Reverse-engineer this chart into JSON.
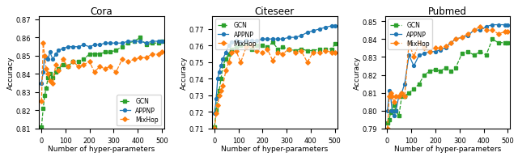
{
  "cora": {
    "title": "Cora",
    "xlabel": "Number of hyper-parameters",
    "ylabel": "Accuracy",
    "xlim": [
      -10,
      510
    ],
    "ylim": [
      0.81,
      0.062
    ],
    "gcn_x": [
      1,
      8,
      14,
      20,
      28,
      36,
      48,
      60,
      72,
      90,
      110,
      132,
      154,
      176,
      200,
      220,
      242,
      264,
      284,
      310,
      335,
      360,
      386,
      410,
      436,
      460,
      488,
      500
    ],
    "gcn_y": [
      0.811,
      0.821,
      0.828,
      0.832,
      0.838,
      0.84,
      0.838,
      0.841,
      0.843,
      0.845,
      0.844,
      0.847,
      0.847,
      0.848,
      0.851,
      0.851,
      0.851,
      0.852,
      0.852,
      0.853,
      0.855,
      0.857,
      0.858,
      0.86,
      0.856,
      0.857,
      0.857,
      0.858
    ],
    "appnp_x": [
      1,
      8,
      14,
      20,
      28,
      36,
      48,
      60,
      72,
      90,
      110,
      132,
      154,
      176,
      200,
      220,
      242,
      264,
      284,
      310,
      335,
      360,
      386,
      410,
      436,
      460,
      488,
      500
    ],
    "appnp_y": [
      0.835,
      0.841,
      0.85,
      0.849,
      0.848,
      0.852,
      0.848,
      0.851,
      0.853,
      0.854,
      0.855,
      0.855,
      0.855,
      0.856,
      0.855,
      0.856,
      0.856,
      0.857,
      0.857,
      0.857,
      0.857,
      0.858,
      0.858,
      0.858,
      0.857,
      0.858,
      0.858,
      0.858
    ],
    "mixhop_x": [
      1,
      8,
      14,
      20,
      28,
      36,
      48,
      60,
      72,
      90,
      110,
      132,
      154,
      176,
      200,
      220,
      242,
      264,
      284,
      310,
      335,
      360,
      386,
      410,
      436,
      460,
      488,
      500
    ],
    "mixhop_y": [
      0.825,
      0.857,
      0.85,
      0.843,
      0.84,
      0.836,
      0.835,
      0.845,
      0.842,
      0.848,
      0.844,
      0.847,
      0.844,
      0.845,
      0.847,
      0.841,
      0.844,
      0.843,
      0.844,
      0.841,
      0.848,
      0.847,
      0.848,
      0.849,
      0.849,
      0.851,
      0.851,
      0.852
    ]
  },
  "citeseer": {
    "title": "Citeseer",
    "xlabel": "Number of hyper-parameters",
    "ylabel": "Accuracy",
    "xlim": [
      -10,
      510
    ],
    "ylim": [
      0.71,
      0.068
    ],
    "gcn_x": [
      1,
      8,
      14,
      20,
      28,
      36,
      48,
      60,
      72,
      90,
      110,
      132,
      154,
      176,
      200,
      220,
      242,
      264,
      284,
      310,
      335,
      360,
      386,
      410,
      436,
      460,
      488,
      500
    ],
    "gcn_y": [
      0.711,
      0.721,
      0.73,
      0.733,
      0.74,
      0.748,
      0.752,
      0.755,
      0.758,
      0.759,
      0.76,
      0.76,
      0.758,
      0.76,
      0.76,
      0.759,
      0.762,
      0.758,
      0.759,
      0.758,
      0.757,
      0.758,
      0.757,
      0.757,
      0.758,
      0.758,
      0.758,
      0.761
    ],
    "appnp_x": [
      1,
      8,
      14,
      20,
      28,
      36,
      48,
      60,
      72,
      90,
      110,
      132,
      154,
      176,
      200,
      220,
      242,
      264,
      284,
      310,
      335,
      360,
      386,
      410,
      436,
      460,
      488,
      500
    ],
    "appnp_y": [
      0.719,
      0.728,
      0.74,
      0.744,
      0.748,
      0.752,
      0.756,
      0.76,
      0.762,
      0.763,
      0.762,
      0.763,
      0.763,
      0.763,
      0.764,
      0.764,
      0.764,
      0.764,
      0.764,
      0.765,
      0.765,
      0.766,
      0.768,
      0.769,
      0.77,
      0.771,
      0.772,
      0.772
    ],
    "mixhop_x": [
      1,
      8,
      14,
      20,
      28,
      36,
      48,
      60,
      72,
      90,
      110,
      132,
      154,
      176,
      200,
      220,
      242,
      264,
      284,
      310,
      335,
      360,
      386,
      410,
      436,
      460,
      488,
      500
    ],
    "mixhop_y": [
      0.71,
      0.719,
      0.724,
      0.73,
      0.733,
      0.736,
      0.745,
      0.75,
      0.756,
      0.757,
      0.75,
      0.759,
      0.76,
      0.757,
      0.756,
      0.758,
      0.751,
      0.756,
      0.755,
      0.758,
      0.756,
      0.757,
      0.75,
      0.756,
      0.756,
      0.757,
      0.756,
      0.756
    ]
  },
  "pubmed": {
    "title": "Pubmed",
    "xlabel": "Number of hyper-parameters",
    "ylabel": "Accuracy",
    "xlim": [
      -10,
      510
    ],
    "ylim": [
      0.79,
      0.063
    ],
    "gcn_x": [
      1,
      8,
      14,
      20,
      28,
      36,
      48,
      60,
      72,
      90,
      110,
      132,
      154,
      176,
      200,
      220,
      242,
      264,
      284,
      310,
      335,
      360,
      386,
      410,
      436,
      460,
      488,
      500
    ],
    "gcn_y": [
      0.793,
      0.795,
      0.799,
      0.8,
      0.803,
      0.8,
      0.797,
      0.808,
      0.808,
      0.81,
      0.812,
      0.815,
      0.82,
      0.822,
      0.823,
      0.822,
      0.824,
      0.822,
      0.824,
      0.832,
      0.833,
      0.831,
      0.833,
      0.831,
      0.84,
      0.838,
      0.838,
      0.838
    ],
    "appnp_x": [
      1,
      8,
      14,
      20,
      28,
      36,
      48,
      60,
      72,
      90,
      110,
      132,
      154,
      176,
      200,
      220,
      242,
      264,
      284,
      310,
      335,
      360,
      386,
      410,
      436,
      460,
      488,
      500
    ],
    "appnp_y": [
      0.8,
      0.811,
      0.808,
      0.8,
      0.797,
      0.8,
      0.808,
      0.81,
      0.815,
      0.831,
      0.825,
      0.831,
      0.832,
      0.833,
      0.833,
      0.834,
      0.835,
      0.838,
      0.84,
      0.841,
      0.842,
      0.845,
      0.845,
      0.847,
      0.848,
      0.848,
      0.848,
      0.848
    ],
    "mixhop_x": [
      1,
      8,
      14,
      20,
      28,
      36,
      48,
      60,
      72,
      90,
      110,
      132,
      154,
      176,
      200,
      220,
      242,
      264,
      284,
      310,
      335,
      360,
      386,
      410,
      436,
      460,
      488,
      500
    ],
    "mixhop_y": [
      0.79,
      0.808,
      0.81,
      0.808,
      0.805,
      0.808,
      0.808,
      0.81,
      0.808,
      0.838,
      0.83,
      0.838,
      0.835,
      0.833,
      0.835,
      0.835,
      0.836,
      0.838,
      0.84,
      0.841,
      0.843,
      0.845,
      0.847,
      0.845,
      0.845,
      0.843,
      0.844,
      0.844
    ]
  },
  "gcn_color": "#2ca02c",
  "appnp_color": "#1f77b4",
  "mixhop_color": "#ff7f0e",
  "gcn_marker": "s",
  "appnp_marker": "o",
  "mixhop_marker": "D",
  "xticks": [
    0,
    100,
    200,
    300,
    400,
    500
  ]
}
